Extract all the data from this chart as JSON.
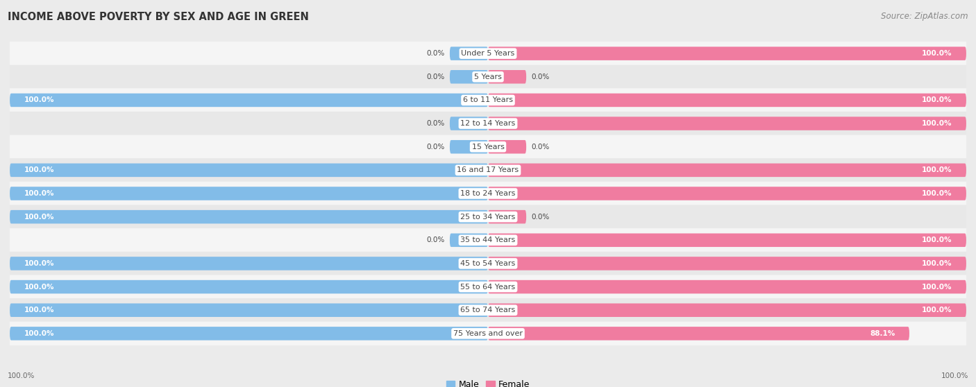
{
  "title": "INCOME ABOVE POVERTY BY SEX AND AGE IN GREEN",
  "source": "Source: ZipAtlas.com",
  "categories": [
    "Under 5 Years",
    "5 Years",
    "6 to 11 Years",
    "12 to 14 Years",
    "15 Years",
    "16 and 17 Years",
    "18 to 24 Years",
    "25 to 34 Years",
    "35 to 44 Years",
    "45 to 54 Years",
    "55 to 64 Years",
    "65 to 74 Years",
    "75 Years and over"
  ],
  "male_values": [
    0.0,
    0.0,
    100.0,
    0.0,
    0.0,
    100.0,
    100.0,
    100.0,
    0.0,
    100.0,
    100.0,
    100.0,
    100.0
  ],
  "female_values": [
    100.0,
    0.0,
    100.0,
    100.0,
    0.0,
    100.0,
    100.0,
    0.0,
    100.0,
    100.0,
    100.0,
    100.0,
    88.1
  ],
  "male_color": "#82bce8",
  "female_color": "#f07ca0",
  "row_colors": [
    "#f5f5f5",
    "#e8e8e8"
  ],
  "bg_color": "#ebebeb",
  "label_bg": "#ffffff",
  "text_dark": "#444444",
  "text_white": "#ffffff",
  "male_label": "Male",
  "female_label": "Female",
  "bar_height": 0.58,
  "label_fontsize": 8.0,
  "value_fontsize": 7.5,
  "title_fontsize": 10.5,
  "source_fontsize": 8.5
}
